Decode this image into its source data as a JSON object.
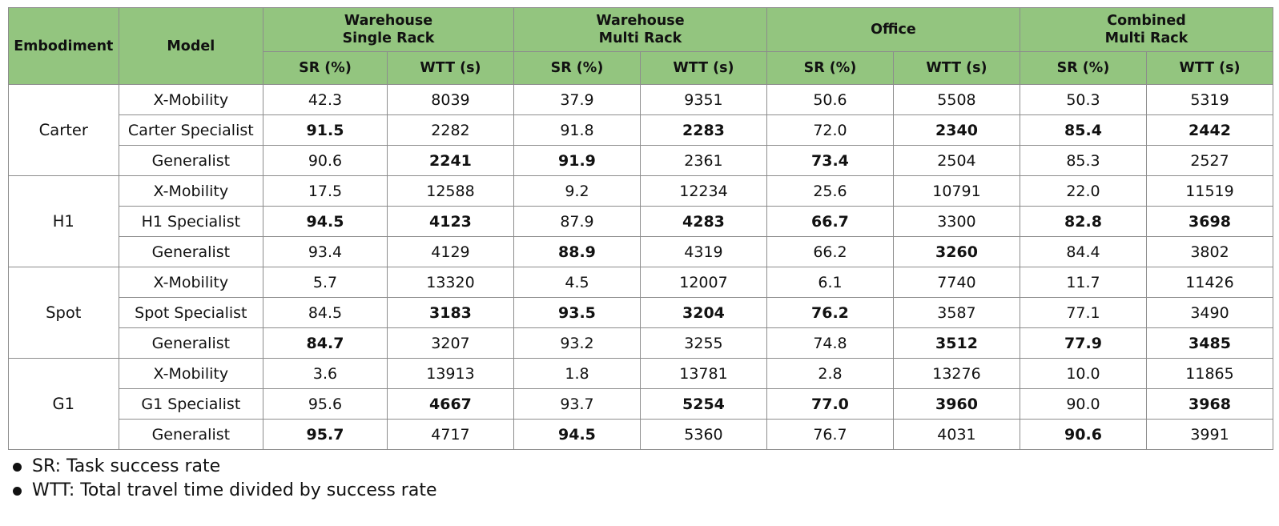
{
  "header": {
    "embodiment": "Embodiment",
    "model": "Model",
    "groups": [
      {
        "lines": [
          "Warehouse",
          "Single Rack"
        ]
      },
      {
        "lines": [
          "Warehouse",
          "Multi Rack"
        ]
      },
      {
        "lines": [
          "Office"
        ]
      },
      {
        "lines": [
          "Combined",
          "Multi Rack"
        ]
      }
    ],
    "sr": "SR (%)",
    "wtt": "WTT (s)"
  },
  "rows": [
    {
      "embodiment": "Carter",
      "model": "X-Mobility",
      "cells": [
        {
          "v": "42.3",
          "b": false
        },
        {
          "v": "8039",
          "b": false
        },
        {
          "v": "37.9",
          "b": false
        },
        {
          "v": "9351",
          "b": false
        },
        {
          "v": "50.6",
          "b": false
        },
        {
          "v": "5508",
          "b": false
        },
        {
          "v": "50.3",
          "b": false
        },
        {
          "v": "5319",
          "b": false
        }
      ]
    },
    {
      "embodiment": "Carter",
      "model": "Carter Specialist",
      "cells": [
        {
          "v": "91.5",
          "b": true
        },
        {
          "v": "2282",
          "b": false
        },
        {
          "v": "91.8",
          "b": false
        },
        {
          "v": "2283",
          "b": true
        },
        {
          "v": "72.0",
          "b": false
        },
        {
          "v": "2340",
          "b": true
        },
        {
          "v": "85.4",
          "b": true
        },
        {
          "v": "2442",
          "b": true
        }
      ]
    },
    {
      "embodiment": "Carter",
      "model": "Generalist",
      "cells": [
        {
          "v": "90.6",
          "b": false
        },
        {
          "v": "2241",
          "b": true
        },
        {
          "v": "91.9",
          "b": true
        },
        {
          "v": "2361",
          "b": false
        },
        {
          "v": "73.4",
          "b": true
        },
        {
          "v": "2504",
          "b": false
        },
        {
          "v": "85.3",
          "b": false
        },
        {
          "v": "2527",
          "b": false
        }
      ]
    },
    {
      "embodiment": "H1",
      "model": "X-Mobility",
      "cells": [
        {
          "v": "17.5",
          "b": false
        },
        {
          "v": "12588",
          "b": false
        },
        {
          "v": "9.2",
          "b": false
        },
        {
          "v": "12234",
          "b": false
        },
        {
          "v": "25.6",
          "b": false
        },
        {
          "v": "10791",
          "b": false
        },
        {
          "v": "22.0",
          "b": false
        },
        {
          "v": "11519",
          "b": false
        }
      ]
    },
    {
      "embodiment": "H1",
      "model": "H1 Specialist",
      "cells": [
        {
          "v": "94.5",
          "b": true
        },
        {
          "v": "4123",
          "b": true
        },
        {
          "v": "87.9",
          "b": false
        },
        {
          "v": "4283",
          "b": true
        },
        {
          "v": "66.7",
          "b": true
        },
        {
          "v": "3300",
          "b": false
        },
        {
          "v": "82.8",
          "b": true
        },
        {
          "v": "3698",
          "b": true
        }
      ]
    },
    {
      "embodiment": "H1",
      "model": "Generalist",
      "cells": [
        {
          "v": "93.4",
          "b": false
        },
        {
          "v": "4129",
          "b": false
        },
        {
          "v": "88.9",
          "b": true
        },
        {
          "v": "4319",
          "b": false
        },
        {
          "v": "66.2",
          "b": false
        },
        {
          "v": "3260",
          "b": true
        },
        {
          "v": "84.4",
          "b": false
        },
        {
          "v": "3802",
          "b": false
        }
      ]
    },
    {
      "embodiment": "Spot",
      "model": "X-Mobility",
      "cells": [
        {
          "v": "5.7",
          "b": false
        },
        {
          "v": "13320",
          "b": false
        },
        {
          "v": "4.5",
          "b": false
        },
        {
          "v": "12007",
          "b": false
        },
        {
          "v": "6.1",
          "b": false
        },
        {
          "v": "7740",
          "b": false
        },
        {
          "v": "11.7",
          "b": false
        },
        {
          "v": "11426",
          "b": false
        }
      ]
    },
    {
      "embodiment": "Spot",
      "model": "Spot Specialist",
      "cells": [
        {
          "v": "84.5",
          "b": false
        },
        {
          "v": "3183",
          "b": true
        },
        {
          "v": "93.5",
          "b": true
        },
        {
          "v": "3204",
          "b": true
        },
        {
          "v": "76.2",
          "b": true
        },
        {
          "v": "3587",
          "b": false
        },
        {
          "v": "77.1",
          "b": false
        },
        {
          "v": "3490",
          "b": false
        }
      ]
    },
    {
      "embodiment": "Spot",
      "model": "Generalist",
      "cells": [
        {
          "v": "84.7",
          "b": true
        },
        {
          "v": "3207",
          "b": false
        },
        {
          "v": "93.2",
          "b": false
        },
        {
          "v": "3255",
          "b": false
        },
        {
          "v": "74.8",
          "b": false
        },
        {
          "v": "3512",
          "b": true
        },
        {
          "v": "77.9",
          "b": true
        },
        {
          "v": "3485",
          "b": true
        }
      ]
    },
    {
      "embodiment": "G1",
      "model": "X-Mobility",
      "cells": [
        {
          "v": "3.6",
          "b": false
        },
        {
          "v": "13913",
          "b": false
        },
        {
          "v": "1.8",
          "b": false
        },
        {
          "v": "13781",
          "b": false
        },
        {
          "v": "2.8",
          "b": false
        },
        {
          "v": "13276",
          "b": false
        },
        {
          "v": "10.0",
          "b": false
        },
        {
          "v": "11865",
          "b": false
        }
      ]
    },
    {
      "embodiment": "G1",
      "model": "G1 Specialist",
      "cells": [
        {
          "v": "95.6",
          "b": false
        },
        {
          "v": "4667",
          "b": true
        },
        {
          "v": "93.7",
          "b": false
        },
        {
          "v": "5254",
          "b": true
        },
        {
          "v": "77.0",
          "b": true
        },
        {
          "v": "3960",
          "b": true
        },
        {
          "v": "90.0",
          "b": false
        },
        {
          "v": "3968",
          "b": true
        }
      ]
    },
    {
      "embodiment": "G1",
      "model": "Generalist",
      "cells": [
        {
          "v": "95.7",
          "b": true
        },
        {
          "v": "4717",
          "b": false
        },
        {
          "v": "94.5",
          "b": true
        },
        {
          "v": "5360",
          "b": false
        },
        {
          "v": "76.7",
          "b": false
        },
        {
          "v": "4031",
          "b": false
        },
        {
          "v": "90.6",
          "b": true
        },
        {
          "v": "3991",
          "b": false
        }
      ]
    }
  ],
  "footnotes": [
    "SR: Task success rate",
    "WTT: Total travel time divided by success rate"
  ],
  "colors": {
    "header_bg": "#93c57f",
    "border": "#8c8c8c",
    "text": "#111111"
  }
}
